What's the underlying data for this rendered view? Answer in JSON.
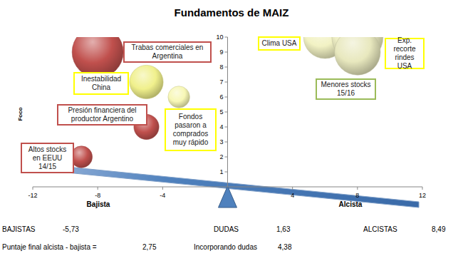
{
  "chart_data": {
    "type": "bubble",
    "title": "Fundamentos de MAIZ",
    "xlabels": [
      "Bajista",
      "Alcista"
    ],
    "ylabel": "Foco",
    "x": [
      -8,
      -5,
      -3,
      -5,
      -9,
      6,
      8,
      8
    ],
    "values": [
      9,
      7,
      6,
      4,
      2,
      10,
      10,
      9
    ],
    "sizes": [
      10,
      4.3,
      1.8,
      2.4,
      1.8,
      7,
      10,
      8
    ],
    "labels": [
      "Trabas comerciales en Argentina",
      "Inestabilidad China",
      "Fondos pasaron a comprados muy rápido",
      "Presión financiera del productor Argentino",
      "Altos stocks en EEUU 14/15",
      "Clima USA",
      "Exp. recorte rindes USA",
      "Menores stocks 15/16"
    ],
    "colors": [
      "#c0504d",
      "#f0f08c",
      "#f7f7b5",
      "#c0504d",
      "#c0504d",
      "#f2f2c4",
      "#eeeec4",
      "#e8e8be"
    ],
    "xlim": [
      -12,
      12
    ],
    "xticks": [
      -12,
      -8,
      -4,
      4,
      8,
      12
    ],
    "ylim": [
      0,
      10
    ],
    "yticks": [
      1,
      2,
      3,
      4,
      5,
      6,
      7,
      8,
      9,
      10
    ],
    "grid": false
  },
  "summary": [
    {
      "label": "BAJISTAS",
      "value": "-5,73"
    },
    {
      "label": "DUDAS",
      "value": "1,63"
    },
    {
      "label": "ALCISTAS",
      "value": "8,49"
    },
    {
      "label": "Puntaje final alcista - bajista =",
      "value": "2,75"
    },
    {
      "label": "Incorporando dudas",
      "value": "4,38"
    }
  ]
}
